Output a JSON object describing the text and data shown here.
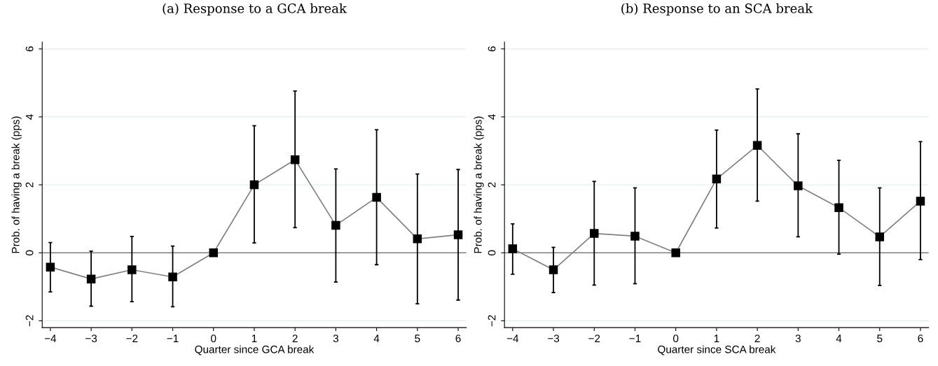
{
  "chart_data": [
    {
      "type": "line",
      "title": "(a) Response to a GCA break",
      "xlabel": "Quarter since GCA break",
      "ylabel": "Prob. of having a break (pps)",
      "x": [
        -4,
        -3,
        -2,
        -1,
        0,
        1,
        2,
        3,
        4,
        5,
        6
      ],
      "series": [
        {
          "color": "#808080",
          "values": [
            -0.42,
            -0.77,
            -0.5,
            -0.71,
            0,
            2.0,
            2.74,
            0.81,
            1.63,
            0.41,
            0.53
          ],
          "errors": [
            [
              -1.15,
              0.3
            ],
            [
              -1.57,
              0.05
            ],
            [
              -1.44,
              0.48
            ],
            [
              -1.59,
              0.2
            ],
            null,
            [
              0.29,
              3.74
            ],
            [
              0.74,
              4.76
            ],
            [
              -0.86,
              2.47
            ],
            [
              -0.35,
              3.62
            ],
            [
              -1.5,
              2.32
            ],
            [
              -1.39,
              2.45
            ]
          ]
        }
      ],
      "marker": "square",
      "line_style": "solid",
      "grid": "y",
      "xlim": [
        -4.2,
        6.2
      ],
      "ylim": [
        -2.2,
        6.2
      ],
      "xticks": [
        {
          "value": -4,
          "label": "−4"
        },
        {
          "value": -3,
          "label": "−3"
        },
        {
          "value": -2,
          "label": "−2"
        },
        {
          "value": -1,
          "label": "−1"
        },
        0,
        1,
        2,
        3,
        4,
        5,
        6
      ],
      "yticks": [
        {
          "value": -2,
          "label": "−2"
        },
        0,
        2,
        4,
        6
      ],
      "ref_lines": [
        {
          "axis": "y",
          "value": 0,
          "color": "#808080"
        }
      ]
    },
    {
      "type": "line",
      "title": "(b) Response to an SCA break",
      "xlabel": "Quarter since SCA break",
      "ylabel": "Prob. of having a break (pps)",
      "x": [
        -4,
        -3,
        -2,
        -1,
        0,
        1,
        2,
        3,
        4,
        5,
        6
      ],
      "series": [
        {
          "color": "#808080",
          "values": [
            0.12,
            -0.5,
            0.57,
            0.49,
            0,
            2.17,
            3.16,
            1.97,
            1.33,
            0.47,
            1.52
          ],
          "errors": [
            [
              -0.63,
              0.85
            ],
            [
              -1.17,
              0.16
            ],
            [
              -0.95,
              2.1
            ],
            [
              -0.91,
              1.91
            ],
            null,
            [
              0.73,
              3.61
            ],
            [
              1.52,
              4.82
            ],
            [
              0.47,
              3.5
            ],
            [
              -0.04,
              2.72
            ],
            [
              -0.96,
              1.91
            ],
            [
              -0.2,
              3.27
            ]
          ]
        }
      ],
      "marker": "square",
      "line_style": "solid",
      "grid": "y",
      "xlim": [
        -4.2,
        6.2
      ],
      "ylim": [
        -2.2,
        6.2
      ],
      "xticks": [
        {
          "value": -4,
          "label": "−4"
        },
        {
          "value": -3,
          "label": "−3"
        },
        {
          "value": -2,
          "label": "−2"
        },
        {
          "value": -1,
          "label": "−1"
        },
        0,
        1,
        2,
        3,
        4,
        5,
        6
      ],
      "yticks": [
        {
          "value": -2,
          "label": "−2"
        },
        0,
        2,
        4,
        6
      ],
      "ref_lines": [
        {
          "axis": "y",
          "value": 0,
          "color": "#808080"
        }
      ]
    }
  ]
}
